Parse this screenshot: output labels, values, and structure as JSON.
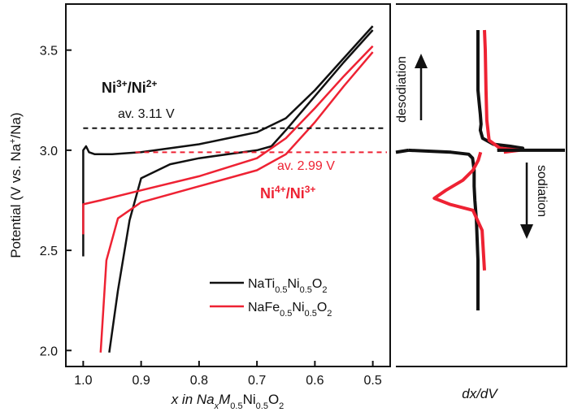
{
  "colors": {
    "black_series": "#111111",
    "red_series": "#ee2233",
    "axis": "#111111"
  },
  "chart_data": [
    {
      "type": "line",
      "title": "",
      "xlabel": {
        "main": "x in Na",
        "sub1": "x",
        "mid1": "M",
        "sub2": "0.5",
        "mid2": "Ni",
        "sub3": "0.5",
        "mid3": "O",
        "sub4": "2"
      },
      "ylabel": {
        "part1": "Potential (V vs. Na",
        "sup": "+",
        "part2": "/Na)"
      },
      "xlim": [
        1.03,
        0.47
      ],
      "ylim": [
        1.92,
        3.73
      ],
      "x_inverted": true,
      "xticks": [
        "1.0",
        "0.9",
        "0.8",
        "0.7",
        "0.6",
        "0.5"
      ],
      "xtick_values": [
        1.0,
        0.9,
        0.8,
        0.7,
        0.6,
        0.5
      ],
      "yticks": [
        "2.0",
        "2.5",
        "3.0",
        "3.5"
      ],
      "ytick_values": [
        2.0,
        2.5,
        3.0,
        3.5
      ],
      "grid": false,
      "legend_position": "lower-right",
      "series": [
        {
          "name": {
            "p1": "NaTi",
            "s1": "0.5",
            "p2": "Ni",
            "s2": "0.5",
            "p3": "O",
            "s3": "2"
          },
          "color": "#111111",
          "charge": {
            "x": [
              1.0,
              1.0,
              1.0,
              0.995,
              0.99,
              0.98,
              0.95,
              0.9,
              0.85,
              0.8,
              0.75,
              0.7,
              0.65,
              0.6,
              0.55,
              0.5
            ],
            "y": [
              2.47,
              2.8,
              3.0,
              3.02,
              2.99,
              2.98,
              2.98,
              2.99,
              3.01,
              3.03,
              3.06,
              3.09,
              3.16,
              3.3,
              3.46,
              3.62
            ]
          },
          "discharge": {
            "x": [
              0.5,
              0.55,
              0.6,
              0.65,
              0.675,
              0.7,
              0.75,
              0.8,
              0.85,
              0.9,
              0.92,
              0.94,
              0.955
            ],
            "y": [
              3.6,
              3.44,
              3.27,
              3.1,
              3.02,
              3.0,
              2.98,
              2.96,
              2.93,
              2.86,
              2.65,
              2.3,
              1.99
            ]
          }
        },
        {
          "name": {
            "p1": "NaFe",
            "s1": "0.5",
            "p2": "Ni",
            "s2": "0.5",
            "p3": "O",
            "s3": "2"
          },
          "color": "#ee2233",
          "charge": {
            "x": [
              1.0,
              1.0,
              0.97,
              0.9,
              0.8,
              0.7,
              0.65,
              0.6,
              0.55,
              0.5
            ],
            "y": [
              2.58,
              2.73,
              2.75,
              2.8,
              2.87,
              2.96,
              3.06,
              3.21,
              3.37,
              3.52
            ]
          },
          "discharge": {
            "x": [
              0.5,
              0.55,
              0.6,
              0.65,
              0.7,
              0.8,
              0.9,
              0.94,
              0.96,
              0.97
            ],
            "y": [
              3.49,
              3.32,
              3.14,
              2.98,
              2.9,
              2.82,
              2.74,
              2.66,
              2.45,
              1.99
            ]
          }
        }
      ],
      "annotations": [
        {
          "id": "ni32_label",
          "parts": {
            "a": "Ni",
            "asup": "3+",
            "b": "/Ni",
            "bsup": "2+"
          }
        },
        {
          "id": "av_black",
          "text": "av. 3.11 V",
          "y": 3.11
        },
        {
          "id": "av_red",
          "text": "av. 2.99 V",
          "y": 2.99
        },
        {
          "id": "ni43_label",
          "parts": {
            "a": "Ni",
            "asup": "4+",
            "b": "/Ni",
            "bsup": "3+"
          }
        }
      ]
    },
    {
      "type": "line",
      "title": "",
      "xlabel": "dx/dV",
      "ylabel": "",
      "ylim": [
        1.92,
        3.73
      ],
      "labels": {
        "up": "desodiation",
        "down": "sodiation"
      },
      "series": [
        {
          "name": "",
          "color": "#111111",
          "anodic": {
            "y": [
              3.0,
              3.01,
              3.02,
              3.03,
              3.06,
              3.1,
              3.13,
              3.18,
              3.22,
              3.3,
              3.45,
              3.6
            ],
            "val": [
              0.25,
              0.58,
              0.42,
              0.2,
              0.06,
              0.03,
              0.04,
              0.03,
              0.02,
              0.0,
              0.0,
              0.0
            ]
          },
          "cathodic": {
            "y": [
              3.0,
              2.99,
              2.98,
              2.96,
              2.9,
              2.82,
              2.75,
              2.65,
              2.45,
              2.2
            ],
            "val": [
              -0.9,
              -0.35,
              -0.12,
              -0.07,
              -0.05,
              -0.05,
              -0.04,
              -0.02,
              0.0,
              0.0
            ]
          }
        },
        {
          "name": "",
          "color": "#ee2233",
          "anodic": {
            "y": [
              2.99,
              3.0,
              3.01,
              3.05,
              3.15,
              3.3,
              3.5,
              3.6
            ],
            "val": [
              0.25,
              0.45,
              0.2,
              0.06,
              0.03,
              0.02,
              0.01,
              0.0
            ]
          },
          "cathodic": {
            "y": [
              2.99,
              2.95,
              2.9,
              2.85,
              2.8,
              2.76,
              2.73,
              2.7,
              2.6,
              2.4
            ],
            "val": [
              -0.05,
              -0.08,
              -0.15,
              -0.28,
              -0.5,
              -0.65,
              -0.45,
              -0.15,
              -0.03,
              0.0
            ]
          }
        }
      ]
    }
  ]
}
